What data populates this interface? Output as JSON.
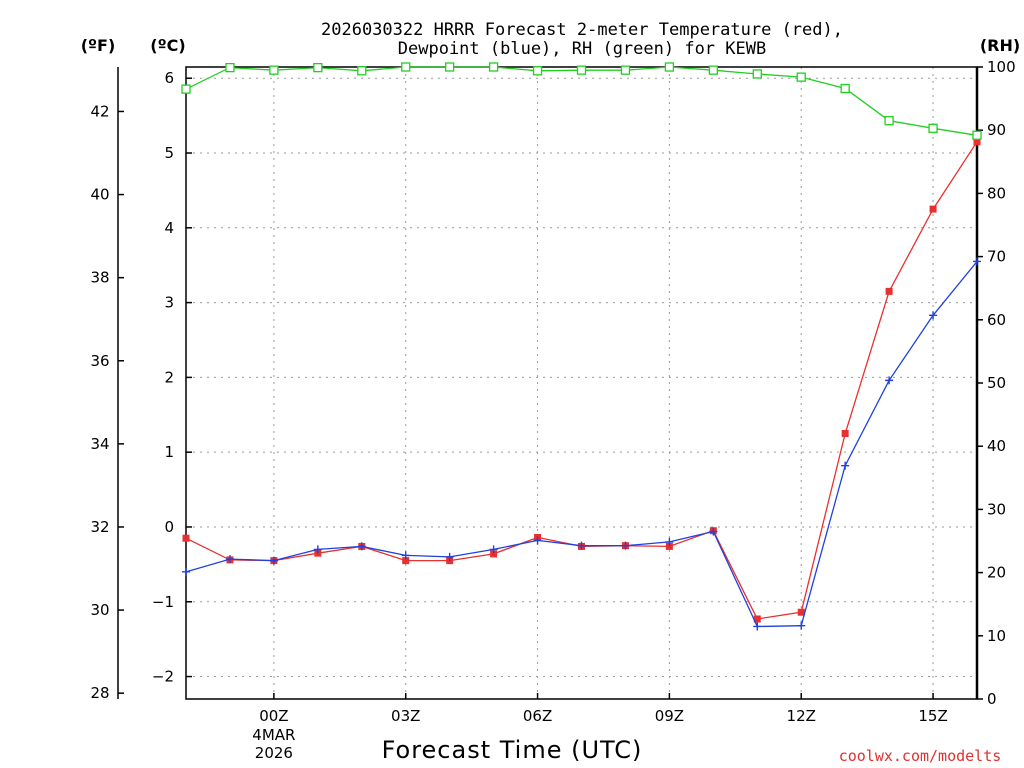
{
  "chart_data": {
    "type": "line",
    "title": [
      "2026030322 HRRR Forecast 2-meter Temperature (red),",
      "Dewpoint (blue), RH (green) for KEWB"
    ],
    "xlabel": "Forecast Time (UTC)",
    "credit": "coolwx.com/modelts",
    "units": {
      "fahrenheit": "(ºF)",
      "celsius": "(ºC)",
      "rh": "(RH)"
    },
    "x_hours": [
      -2,
      -1,
      0,
      1,
      2,
      3,
      4,
      5,
      6,
      7,
      8,
      9,
      10,
      11,
      12,
      13,
      14,
      15,
      16
    ],
    "x_ticks": [
      {
        "hour": 0,
        "label": "00Z",
        "sub": [
          "4MAR",
          "2026"
        ]
      },
      {
        "hour": 3,
        "label": "03Z"
      },
      {
        "hour": 6,
        "label": "06Z"
      },
      {
        "hour": 9,
        "label": "09Z"
      },
      {
        "hour": 12,
        "label": "12Z"
      },
      {
        "hour": 15,
        "label": "15Z"
      }
    ],
    "xlim": [
      -2,
      16
    ],
    "y_celsius": {
      "ylim": [
        -2.3,
        6.15
      ],
      "ticks": [
        -2,
        -1,
        0,
        1,
        2,
        3,
        4,
        5,
        6
      ]
    },
    "y_fahrenheit": {
      "ylim": [
        27.86,
        43.07
      ],
      "ticks": [
        28,
        30,
        32,
        34,
        36,
        38,
        40,
        42
      ]
    },
    "y_rh": {
      "ylim": [
        0,
        100
      ],
      "ticks": [
        0,
        10,
        20,
        30,
        40,
        50,
        60,
        70,
        80,
        90,
        100
      ]
    },
    "series": [
      {
        "name": "Temperature",
        "axis": "celsius",
        "color": "#e83030",
        "marker": "filled-square",
        "values": [
          -0.15,
          -0.44,
          -0.45,
          -0.35,
          -0.26,
          -0.45,
          -0.45,
          -0.36,
          -0.14,
          -0.26,
          -0.25,
          -0.26,
          -0.05,
          -1.23,
          -1.14,
          1.25,
          3.15,
          4.25,
          5.15
        ]
      },
      {
        "name": "Dewpoint",
        "axis": "celsius",
        "color": "#2040e0",
        "marker": "plus",
        "values": [
          -0.6,
          -0.43,
          -0.45,
          -0.3,
          -0.26,
          -0.38,
          -0.4,
          -0.3,
          -0.18,
          -0.25,
          -0.25,
          -0.2,
          -0.06,
          -1.33,
          -1.32,
          0.82,
          1.96,
          2.83,
          3.55
        ]
      },
      {
        "name": "RH",
        "axis": "rh",
        "color": "#20d020",
        "marker": "open-square",
        "values": [
          96.5,
          99.9,
          99.5,
          99.9,
          99.4,
          100,
          100,
          100,
          99.4,
          99.5,
          99.5,
          100,
          99.5,
          98.9,
          98.4,
          96.6,
          91.5,
          90.3,
          89.2
        ]
      }
    ]
  }
}
